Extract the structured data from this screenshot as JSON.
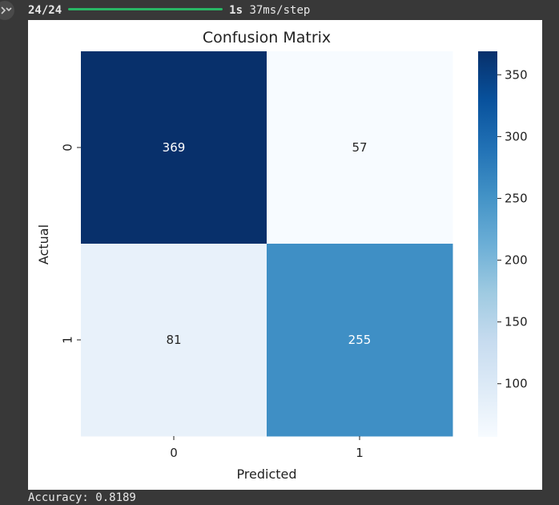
{
  "output": {
    "progress_count": "24/24",
    "progress_time": "1s",
    "progress_step": "37ms/step",
    "accuracy_text": "Accuracy: 0.8189"
  },
  "chart_data": {
    "type": "heatmap",
    "title": "Confusion Matrix",
    "xlabel": "Predicted",
    "ylabel": "Actual",
    "x_ticks": [
      "0",
      "1"
    ],
    "y_ticks": [
      "0",
      "1"
    ],
    "values": [
      [
        369,
        57
      ],
      [
        81,
        255
      ]
    ],
    "colorbar": {
      "ticks": [
        100,
        150,
        200,
        250,
        300,
        350
      ],
      "range": [
        57,
        369
      ],
      "cmap": "Blues"
    },
    "grid": false
  }
}
